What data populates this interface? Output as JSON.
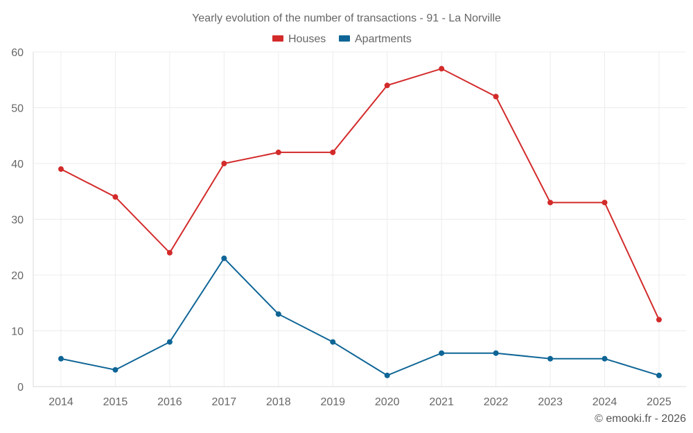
{
  "chart_data": {
    "type": "line",
    "title": "Yearly evolution of the number of transactions - 91 - La Norville",
    "xlabel": "",
    "ylabel": "",
    "categories": [
      "2014",
      "2015",
      "2016",
      "2017",
      "2018",
      "2019",
      "2020",
      "2021",
      "2022",
      "2023",
      "2024",
      "2025"
    ],
    "ylim": [
      0,
      60
    ],
    "yticks": [
      0,
      10,
      20,
      30,
      40,
      50,
      60
    ],
    "grid": true,
    "legend_position": "top-center",
    "series": [
      {
        "name": "Houses",
        "color": "#d32a2a",
        "values": [
          39,
          34,
          24,
          40,
          42,
          42,
          54,
          57,
          52,
          33,
          33,
          12
        ]
      },
      {
        "name": "Apartments",
        "color": "#0e6596",
        "values": [
          5,
          3,
          8,
          23,
          13,
          8,
          2,
          6,
          6,
          5,
          5,
          2
        ]
      }
    ]
  },
  "credit": "© emooki.fr - 2026"
}
